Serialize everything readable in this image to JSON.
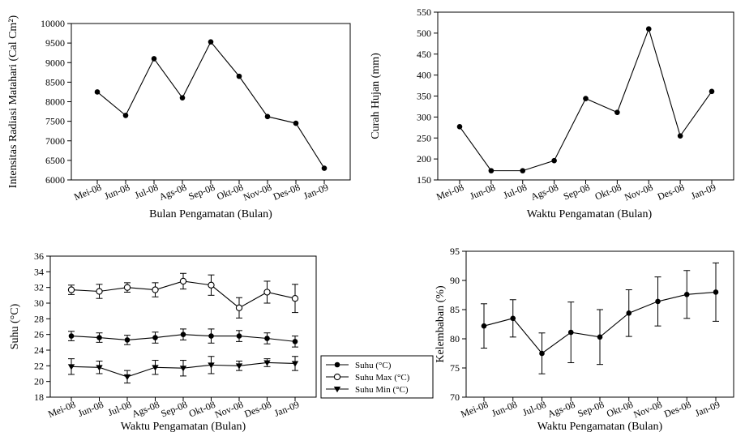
{
  "chart_data": [
    {
      "type": "line",
      "title": "",
      "xlabel": "Bulan Pengamatan (Bulan)",
      "ylabel": "Intensitas Radiasi Matahari (Cal Cm²)",
      "categories": [
        "Mei-08",
        "Jun-08",
        "Jul-08",
        "Ags-08",
        "Sep-08",
        "Okt-08",
        "Nov-08",
        "Des-08",
        "Jan-09"
      ],
      "ylim": [
        6000,
        10000
      ],
      "yticks": [
        6000,
        6500,
        7000,
        7500,
        8000,
        8500,
        9000,
        9500,
        10000
      ],
      "series": [
        {
          "values": [
            8250,
            7650,
            9100,
            8100,
            9530,
            8650,
            7620,
            7450,
            6300
          ],
          "marker": "filled-circle"
        }
      ],
      "grid": false
    },
    {
      "type": "line",
      "title": "",
      "xlabel": "Waktu Pengamatan (Bulan)",
      "ylabel": "Curah Hujan (mm)",
      "categories": [
        "Mei-08",
        "Jun-08",
        "Jul-08",
        "Ags-08",
        "Sep-08",
        "Okt-08",
        "Nov-08",
        "Des-08",
        "Jan-09"
      ],
      "ylim": [
        150,
        550
      ],
      "yticks": [
        150,
        200,
        250,
        300,
        350,
        400,
        450,
        500,
        550
      ],
      "series": [
        {
          "values": [
            277,
            172,
            172,
            196,
            344,
            311,
            510,
            255,
            361
          ],
          "marker": "filled-circle"
        }
      ],
      "grid": false
    },
    {
      "type": "line",
      "title": "",
      "xlabel": "Waktu Pengamatan (Bulan)",
      "ylabel": "Suhu (°C)",
      "categories": [
        "Mei-08",
        "Jun-08",
        "Jul-08",
        "Ags-08",
        "Sep-08",
        "Okt-08",
        "Nov-08",
        "Des-08",
        "Jan-09"
      ],
      "ylim": [
        18,
        36
      ],
      "yticks": [
        18,
        20,
        22,
        24,
        26,
        28,
        30,
        32,
        34,
        36
      ],
      "legend": "bottom-right, outside",
      "series": [
        {
          "name": "Suhu (°C)",
          "marker": "filled-circle",
          "values": [
            25.8,
            25.6,
            25.3,
            25.6,
            26.0,
            25.8,
            25.8,
            25.5,
            25.1
          ],
          "error": [
            0.6,
            0.6,
            0.6,
            0.7,
            0.7,
            0.9,
            0.7,
            0.7,
            0.7
          ]
        },
        {
          "name": "Suhu Max  (°C)",
          "marker": "open-circle",
          "values": [
            31.7,
            31.5,
            32.0,
            31.7,
            32.8,
            32.3,
            29.4,
            31.4,
            30.6
          ],
          "error": [
            0.6,
            0.9,
            0.6,
            0.9,
            1.0,
            1.3,
            1.3,
            1.4,
            1.8
          ]
        },
        {
          "name": "Suhu Min  (°C)",
          "marker": "filled-triangle-down",
          "values": [
            21.9,
            21.8,
            20.6,
            21.8,
            21.7,
            22.1,
            22.0,
            22.4,
            22.3
          ],
          "error": [
            1.0,
            0.8,
            0.8,
            0.9,
            1.0,
            1.1,
            0.6,
            0.5,
            0.9
          ]
        }
      ],
      "grid": false
    },
    {
      "type": "line",
      "title": "",
      "xlabel": "Waktu Pengamatan (Bulan)",
      "ylabel": "Kelembaban (%)",
      "categories": [
        "Mei-08",
        "Jun-08",
        "Jul-08",
        "Ags-08",
        "Sep-08",
        "Okt-08",
        "Nov-08",
        "Des-08",
        "Jan-09"
      ],
      "ylim": [
        70,
        95
      ],
      "yticks": [
        70,
        75,
        80,
        85,
        90,
        95
      ],
      "series": [
        {
          "marker": "filled-circle",
          "values": [
            82.2,
            83.5,
            77.5,
            81.1,
            80.3,
            84.4,
            86.4,
            87.6,
            88.0
          ],
          "error": [
            3.8,
            3.2,
            3.5,
            5.2,
            4.7,
            4.0,
            4.2,
            4.1,
            5.0
          ]
        }
      ],
      "grid": false
    }
  ]
}
